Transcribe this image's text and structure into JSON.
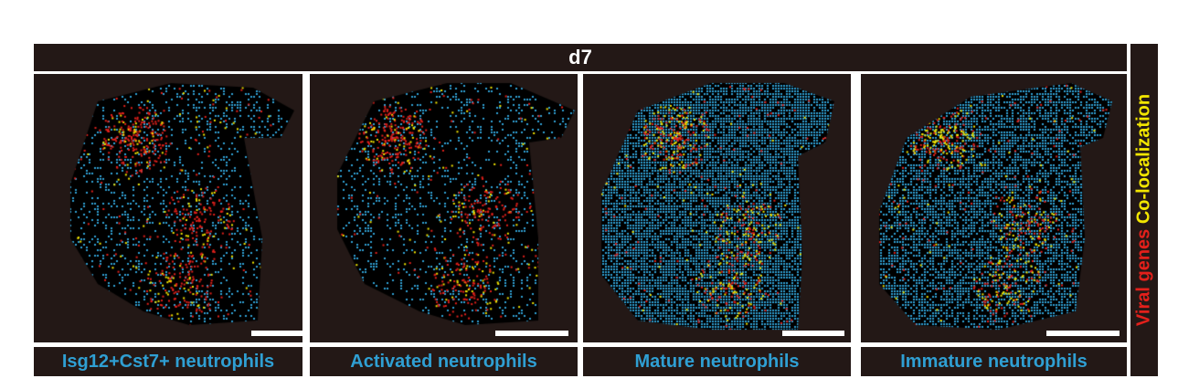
{
  "header": {
    "title": "d7"
  },
  "legend": {
    "viral_label": "Viral genes",
    "coloc_label": "Co-localization",
    "viral_color": "#e3201b",
    "coloc_color": "#f2e600"
  },
  "colors": {
    "background": "#231816",
    "cell_dot": "#2f9fd3",
    "label_text": "#2f9fd3"
  },
  "panels": [
    {
      "label": "Isg12+Cst7+ neutrophils",
      "density": 0.18
    },
    {
      "label": "Activated neutrophils",
      "density": 0.16
    },
    {
      "label": "Mature neutrophils",
      "density": 0.75
    },
    {
      "label": "Immature neutrophils",
      "density": 0.6
    }
  ]
}
